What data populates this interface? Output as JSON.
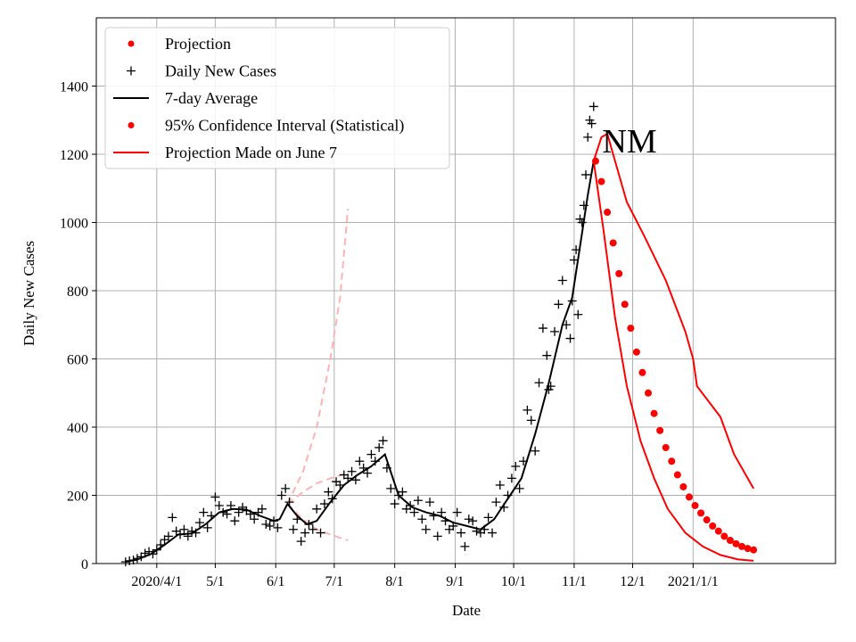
{
  "chart_data": {
    "type": "line",
    "xlabel": "Date",
    "ylabel": "Daily New Cases",
    "annotation": "NM",
    "xlim": [
      "2020-03-01",
      "2021-03-15"
    ],
    "ylim": [
      0,
      1600
    ],
    "grid": true,
    "legend_position": "top-left",
    "x_ticks": [
      {
        "date": "2020-04-01",
        "label": "2020/4/1"
      },
      {
        "date": "2020-05-01",
        "label": "5/1"
      },
      {
        "date": "2020-06-01",
        "label": "6/1"
      },
      {
        "date": "2020-07-01",
        "label": "7/1"
      },
      {
        "date": "2020-08-01",
        "label": "8/1"
      },
      {
        "date": "2020-09-01",
        "label": "9/1"
      },
      {
        "date": "2020-10-01",
        "label": "10/1"
      },
      {
        "date": "2020-11-01",
        "label": "11/1"
      },
      {
        "date": "2020-12-01",
        "label": "12/1"
      },
      {
        "date": "2021-01-01",
        "label": "2021/1/1"
      }
    ],
    "y_ticks": [
      0,
      200,
      400,
      600,
      800,
      1000,
      1200,
      1400
    ],
    "legend": [
      {
        "label": "Projection",
        "kind": "dot",
        "color": "#ff0000"
      },
      {
        "label": "Daily New Cases",
        "kind": "plus",
        "color": "#000000"
      },
      {
        "label": "7-day Average",
        "kind": "line",
        "color": "#000000"
      },
      {
        "label": "95% Confidence Interval (Statistical)",
        "kind": "dot",
        "color": "#ff0000"
      },
      {
        "label": "Projection Made on June 7",
        "kind": "line",
        "color": "#ff0000"
      }
    ],
    "colors": {
      "cases": "#000000",
      "avg": "#000000",
      "projection": "#ff0000",
      "ci": "#ff0000",
      "june7": "#ffb3b3"
    },
    "series": [
      {
        "name": "Daily New Cases",
        "kind": "markers",
        "points": [
          [
            "2020-03-16",
            5
          ],
          [
            "2020-03-18",
            8
          ],
          [
            "2020-03-20",
            10
          ],
          [
            "2020-03-22",
            15
          ],
          [
            "2020-03-24",
            20
          ],
          [
            "2020-03-26",
            30
          ],
          [
            "2020-03-28",
            35
          ],
          [
            "2020-03-30",
            28
          ],
          [
            "2020-04-01",
            40
          ],
          [
            "2020-04-03",
            55
          ],
          [
            "2020-04-05",
            70
          ],
          [
            "2020-04-07",
            80
          ],
          [
            "2020-04-09",
            135
          ],
          [
            "2020-04-11",
            95
          ],
          [
            "2020-04-13",
            85
          ],
          [
            "2020-04-15",
            100
          ],
          [
            "2020-04-17",
            80
          ],
          [
            "2020-04-19",
            95
          ],
          [
            "2020-04-21",
            90
          ],
          [
            "2020-04-23",
            120
          ],
          [
            "2020-04-25",
            150
          ],
          [
            "2020-04-27",
            105
          ],
          [
            "2020-04-29",
            140
          ],
          [
            "2020-05-01",
            195
          ],
          [
            "2020-05-03",
            170
          ],
          [
            "2020-05-05",
            150
          ],
          [
            "2020-05-07",
            145
          ],
          [
            "2020-05-09",
            170
          ],
          [
            "2020-05-11",
            125
          ],
          [
            "2020-05-13",
            150
          ],
          [
            "2020-05-15",
            165
          ],
          [
            "2020-05-17",
            155
          ],
          [
            "2020-05-19",
            145
          ],
          [
            "2020-05-21",
            130
          ],
          [
            "2020-05-23",
            150
          ],
          [
            "2020-05-25",
            160
          ],
          [
            "2020-05-27",
            115
          ],
          [
            "2020-05-29",
            110
          ],
          [
            "2020-05-31",
            125
          ],
          [
            "2020-06-02",
            105
          ],
          [
            "2020-06-04",
            200
          ],
          [
            "2020-06-06",
            220
          ],
          [
            "2020-06-08",
            180
          ],
          [
            "2020-06-10",
            100
          ],
          [
            "2020-06-12",
            130
          ],
          [
            "2020-06-14",
            65
          ],
          [
            "2020-06-16",
            90
          ],
          [
            "2020-06-18",
            115
          ],
          [
            "2020-06-20",
            100
          ],
          [
            "2020-06-22",
            160
          ],
          [
            "2020-06-24",
            90
          ],
          [
            "2020-06-26",
            175
          ],
          [
            "2020-06-28",
            210
          ],
          [
            "2020-06-30",
            190
          ],
          [
            "2020-07-02",
            240
          ],
          [
            "2020-07-04",
            230
          ],
          [
            "2020-07-06",
            260
          ],
          [
            "2020-07-08",
            250
          ],
          [
            "2020-07-10",
            270
          ],
          [
            "2020-07-12",
            245
          ],
          [
            "2020-07-14",
            300
          ],
          [
            "2020-07-16",
            280
          ],
          [
            "2020-07-18",
            265
          ],
          [
            "2020-07-20",
            320
          ],
          [
            "2020-07-22",
            300
          ],
          [
            "2020-07-24",
            340
          ],
          [
            "2020-07-26",
            360
          ],
          [
            "2020-07-28",
            280
          ],
          [
            "2020-07-30",
            220
          ],
          [
            "2020-08-01",
            175
          ],
          [
            "2020-08-03",
            200
          ],
          [
            "2020-08-05",
            210
          ],
          [
            "2020-08-07",
            160
          ],
          [
            "2020-08-09",
            170
          ],
          [
            "2020-08-11",
            150
          ],
          [
            "2020-08-13",
            185
          ],
          [
            "2020-08-15",
            130
          ],
          [
            "2020-08-17",
            100
          ],
          [
            "2020-08-19",
            180
          ],
          [
            "2020-08-21",
            140
          ],
          [
            "2020-08-23",
            80
          ],
          [
            "2020-08-25",
            150
          ],
          [
            "2020-08-27",
            125
          ],
          [
            "2020-08-29",
            100
          ],
          [
            "2020-08-31",
            110
          ],
          [
            "2020-09-02",
            150
          ],
          [
            "2020-09-04",
            90
          ],
          [
            "2020-09-06",
            50
          ],
          [
            "2020-09-08",
            130
          ],
          [
            "2020-09-10",
            125
          ],
          [
            "2020-09-12",
            95
          ],
          [
            "2020-09-14",
            90
          ],
          [
            "2020-09-16",
            100
          ],
          [
            "2020-09-18",
            135
          ],
          [
            "2020-09-20",
            90
          ],
          [
            "2020-09-22",
            180
          ],
          [
            "2020-09-24",
            230
          ],
          [
            "2020-09-26",
            165
          ],
          [
            "2020-09-28",
            200
          ],
          [
            "2020-09-30",
            250
          ],
          [
            "2020-10-02",
            285
          ],
          [
            "2020-10-04",
            220
          ],
          [
            "2020-10-06",
            300
          ],
          [
            "2020-10-08",
            450
          ],
          [
            "2020-10-10",
            420
          ],
          [
            "2020-10-12",
            330
          ],
          [
            "2020-10-14",
            530
          ],
          [
            "2020-10-16",
            690
          ],
          [
            "2020-10-18",
            610
          ],
          [
            "2020-10-20",
            520
          ],
          [
            "2020-10-22",
            680
          ],
          [
            "2020-10-24",
            760
          ],
          [
            "2020-10-26",
            830
          ],
          [
            "2020-10-28",
            700
          ],
          [
            "2020-10-30",
            660
          ],
          [
            "2020-11-01",
            890
          ],
          [
            "2020-11-02",
            920
          ],
          [
            "2020-11-03",
            730
          ],
          [
            "2020-11-05",
            1000
          ],
          [
            "2020-11-06",
            1050
          ],
          [
            "2020-11-07",
            1140
          ],
          [
            "2020-11-08",
            1250
          ],
          [
            "2020-11-09",
            1300
          ],
          [
            "2020-11-10",
            1290
          ],
          [
            "2020-11-11",
            1340
          ],
          [
            "2020-10-31",
            770
          ],
          [
            "2020-11-04",
            1010
          ],
          [
            "2020-10-19",
            510
          ]
        ]
      },
      {
        "name": "7-day Average",
        "kind": "line",
        "points": [
          [
            "2020-03-16",
            5
          ],
          [
            "2020-03-22",
            12
          ],
          [
            "2020-03-29",
            28
          ],
          [
            "2020-04-05",
            55
          ],
          [
            "2020-04-12",
            85
          ],
          [
            "2020-04-19",
            88
          ],
          [
            "2020-04-26",
            115
          ],
          [
            "2020-05-03",
            150
          ],
          [
            "2020-05-10",
            160
          ],
          [
            "2020-05-17",
            158
          ],
          [
            "2020-05-24",
            140
          ],
          [
            "2020-05-31",
            125
          ],
          [
            "2020-06-03",
            130
          ],
          [
            "2020-06-07",
            175
          ],
          [
            "2020-06-12",
            140
          ],
          [
            "2020-06-17",
            115
          ],
          [
            "2020-06-22",
            125
          ],
          [
            "2020-06-29",
            180
          ],
          [
            "2020-07-06",
            230
          ],
          [
            "2020-07-13",
            260
          ],
          [
            "2020-07-20",
            285
          ],
          [
            "2020-07-27",
            320
          ],
          [
            "2020-08-03",
            200
          ],
          [
            "2020-08-10",
            165
          ],
          [
            "2020-08-17",
            150
          ],
          [
            "2020-08-24",
            140
          ],
          [
            "2020-08-31",
            120
          ],
          [
            "2020-09-07",
            110
          ],
          [
            "2020-09-14",
            100
          ],
          [
            "2020-09-21",
            130
          ],
          [
            "2020-09-28",
            190
          ],
          [
            "2020-10-05",
            250
          ],
          [
            "2020-10-12",
            380
          ],
          [
            "2020-10-19",
            530
          ],
          [
            "2020-10-26",
            700
          ],
          [
            "2020-10-31",
            780
          ],
          [
            "2020-11-04",
            930
          ],
          [
            "2020-11-08",
            1080
          ],
          [
            "2020-11-11",
            1180
          ]
        ]
      },
      {
        "name": "Projection",
        "kind": "dots",
        "points": [
          [
            "2020-11-12",
            1180
          ],
          [
            "2020-11-15",
            1120
          ],
          [
            "2020-11-18",
            1030
          ],
          [
            "2020-11-21",
            940
          ],
          [
            "2020-11-24",
            850
          ],
          [
            "2020-11-27",
            760
          ],
          [
            "2020-11-30",
            690
          ],
          [
            "2020-12-03",
            620
          ],
          [
            "2020-12-06",
            560
          ],
          [
            "2020-12-09",
            500
          ],
          [
            "2020-12-12",
            440
          ],
          [
            "2020-12-15",
            390
          ],
          [
            "2020-12-18",
            340
          ],
          [
            "2020-12-21",
            300
          ],
          [
            "2020-12-24",
            260
          ],
          [
            "2020-12-27",
            225
          ],
          [
            "2020-12-30",
            195
          ],
          [
            "2021-01-02",
            170
          ],
          [
            "2021-01-05",
            148
          ],
          [
            "2021-01-08",
            128
          ],
          [
            "2021-01-11",
            110
          ],
          [
            "2021-01-14",
            95
          ],
          [
            "2021-01-17",
            80
          ],
          [
            "2021-01-20",
            68
          ],
          [
            "2021-01-23",
            58
          ],
          [
            "2021-01-26",
            50
          ],
          [
            "2021-01-29",
            44
          ],
          [
            "2021-02-01",
            40
          ]
        ]
      },
      {
        "name": "95% Confidence Interval (Statistical) upper",
        "kind": "line",
        "points": [
          [
            "2020-11-11",
            1180
          ],
          [
            "2020-11-15",
            1250
          ],
          [
            "2020-11-18",
            1260
          ],
          [
            "2020-11-22",
            1180
          ],
          [
            "2020-11-28",
            1060
          ],
          [
            "2020-12-07",
            960
          ],
          [
            "2020-12-18",
            830
          ],
          [
            "2020-12-28",
            680
          ],
          [
            "2021-01-01",
            600
          ],
          [
            "2021-01-03",
            520
          ],
          [
            "2021-01-15",
            430
          ],
          [
            "2021-01-22",
            320
          ],
          [
            "2021-02-01",
            220
          ]
        ]
      },
      {
        "name": "95% Confidence Interval (Statistical) lower",
        "kind": "line",
        "points": [
          [
            "2020-11-11",
            1180
          ],
          [
            "2020-11-16",
            980
          ],
          [
            "2020-11-22",
            720
          ],
          [
            "2020-11-28",
            520
          ],
          [
            "2020-12-05",
            360
          ],
          [
            "2020-12-12",
            250
          ],
          [
            "2020-12-19",
            160
          ],
          [
            "2020-12-28",
            90
          ],
          [
            "2021-01-06",
            50
          ],
          [
            "2021-01-15",
            25
          ],
          [
            "2021-01-24",
            12
          ],
          [
            "2021-02-01",
            8
          ]
        ]
      },
      {
        "name": "Projection Made on June 7 upper",
        "kind": "dashed",
        "points": [
          [
            "2020-06-07",
            175
          ],
          [
            "2020-06-15",
            270
          ],
          [
            "2020-06-22",
            400
          ],
          [
            "2020-06-29",
            600
          ],
          [
            "2020-07-04",
            780
          ],
          [
            "2020-07-08",
            1040
          ]
        ]
      },
      {
        "name": "Projection Made on June 7 middle",
        "kind": "dashed",
        "points": [
          [
            "2020-06-07",
            175
          ],
          [
            "2020-06-15",
            210
          ],
          [
            "2020-06-22",
            235
          ],
          [
            "2020-06-29",
            250
          ],
          [
            "2020-07-08",
            265
          ]
        ]
      },
      {
        "name": "Projection Made on June 7 lower",
        "kind": "dashed",
        "points": [
          [
            "2020-06-07",
            175
          ],
          [
            "2020-06-15",
            130
          ],
          [
            "2020-06-22",
            100
          ],
          [
            "2020-06-29",
            85
          ],
          [
            "2020-07-08",
            68
          ]
        ]
      }
    ]
  }
}
